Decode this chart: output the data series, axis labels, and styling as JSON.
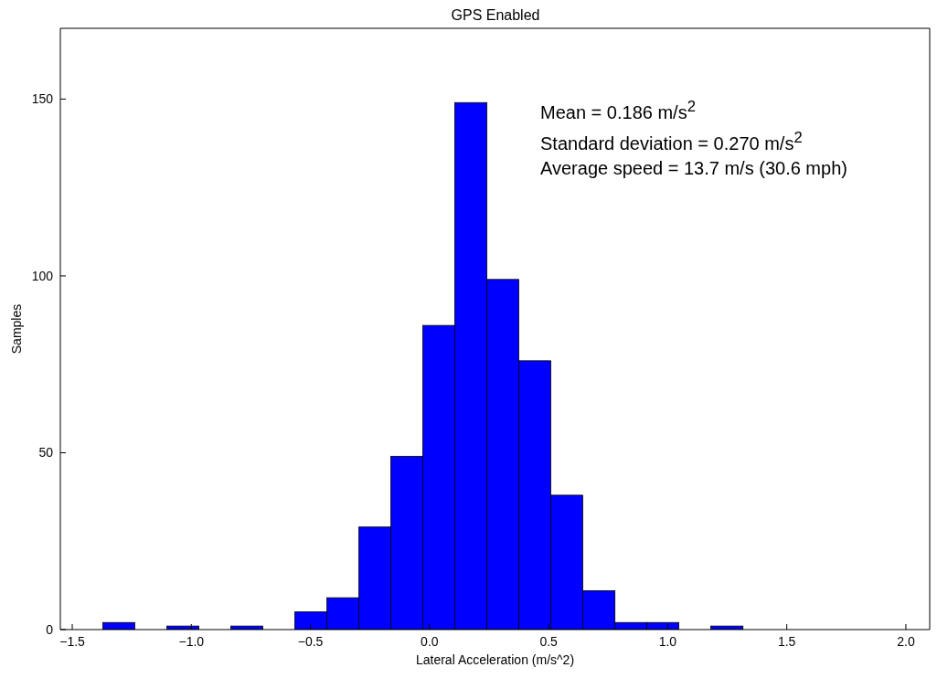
{
  "chart_data": {
    "type": "histogram",
    "title": "GPS Enabled",
    "xlabel": "Lateral Acceleration (m/s^2)",
    "ylabel": "Samples",
    "bins": [
      -1.372,
      -1.238,
      -1.103,
      -0.969,
      -0.835,
      -0.701,
      -0.567,
      -0.432,
      -0.298,
      -0.164,
      -0.03,
      0.104,
      0.239,
      0.373,
      0.507,
      0.641,
      0.776,
      0.91,
      1.044,
      1.178,
      1.313
    ],
    "values": [
      2,
      0,
      1,
      0,
      1,
      0,
      5,
      9,
      29,
      49,
      86,
      149,
      99,
      76,
      38,
      11,
      2,
      2,
      0,
      1
    ],
    "color": "#0000ff",
    "xlim": [
      -1.55,
      2.1
    ],
    "xticks": [
      {
        "value": -1.5,
        "label": "−1.5"
      },
      {
        "value": -1,
        "label": "−1.0"
      },
      {
        "value": -0.5,
        "label": "−0.5"
      },
      {
        "value": 0,
        "label": "0.0"
      },
      {
        "value": 0.5,
        "label": "0.5"
      },
      {
        "value": 1,
        "label": "1.0"
      },
      {
        "value": 1.5,
        "label": "1.5"
      },
      {
        "value": 2,
        "label": "2.0"
      }
    ],
    "ylim": [
      0,
      170
    ],
    "yticks": [
      0,
      50,
      100,
      150
    ],
    "grid": false,
    "legend": false,
    "annotations": [
      "Mean = 0.186 m/s$^{2}$",
      "Standard deviation = 0.270 m/s$^{2}$",
      "Average speed = 13.7 m/s (30.6 mph)"
    ]
  }
}
